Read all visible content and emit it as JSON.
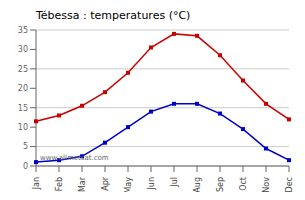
{
  "chart_data": {
    "type": "line",
    "title": "Tébessa : temperatures (°C)",
    "categories": [
      "Jan",
      "Feb",
      "Mar",
      "Apr",
      "May",
      "Jun",
      "Jul",
      "Aug",
      "Sep",
      "Oct",
      "Nov",
      "Dec"
    ],
    "series": [
      {
        "color": "#cc0000",
        "marker": "square",
        "values": [
          11.5,
          13.0,
          15.5,
          19.0,
          24.0,
          30.5,
          34.0,
          33.5,
          28.5,
          22.0,
          16.0,
          12.0
        ]
      },
      {
        "color": "#0000cc",
        "marker": "square",
        "values": [
          1.0,
          1.5,
          2.5,
          6.0,
          10.0,
          14.0,
          16.0,
          16.0,
          13.5,
          9.5,
          4.5,
          1.5
        ]
      }
    ],
    "ylim": [
      0,
      35
    ],
    "yticks": [
      0,
      5,
      10,
      15,
      20,
      25,
      30,
      35
    ],
    "grid": true,
    "annotations": [
      "www.allmetsat.com"
    ]
  }
}
